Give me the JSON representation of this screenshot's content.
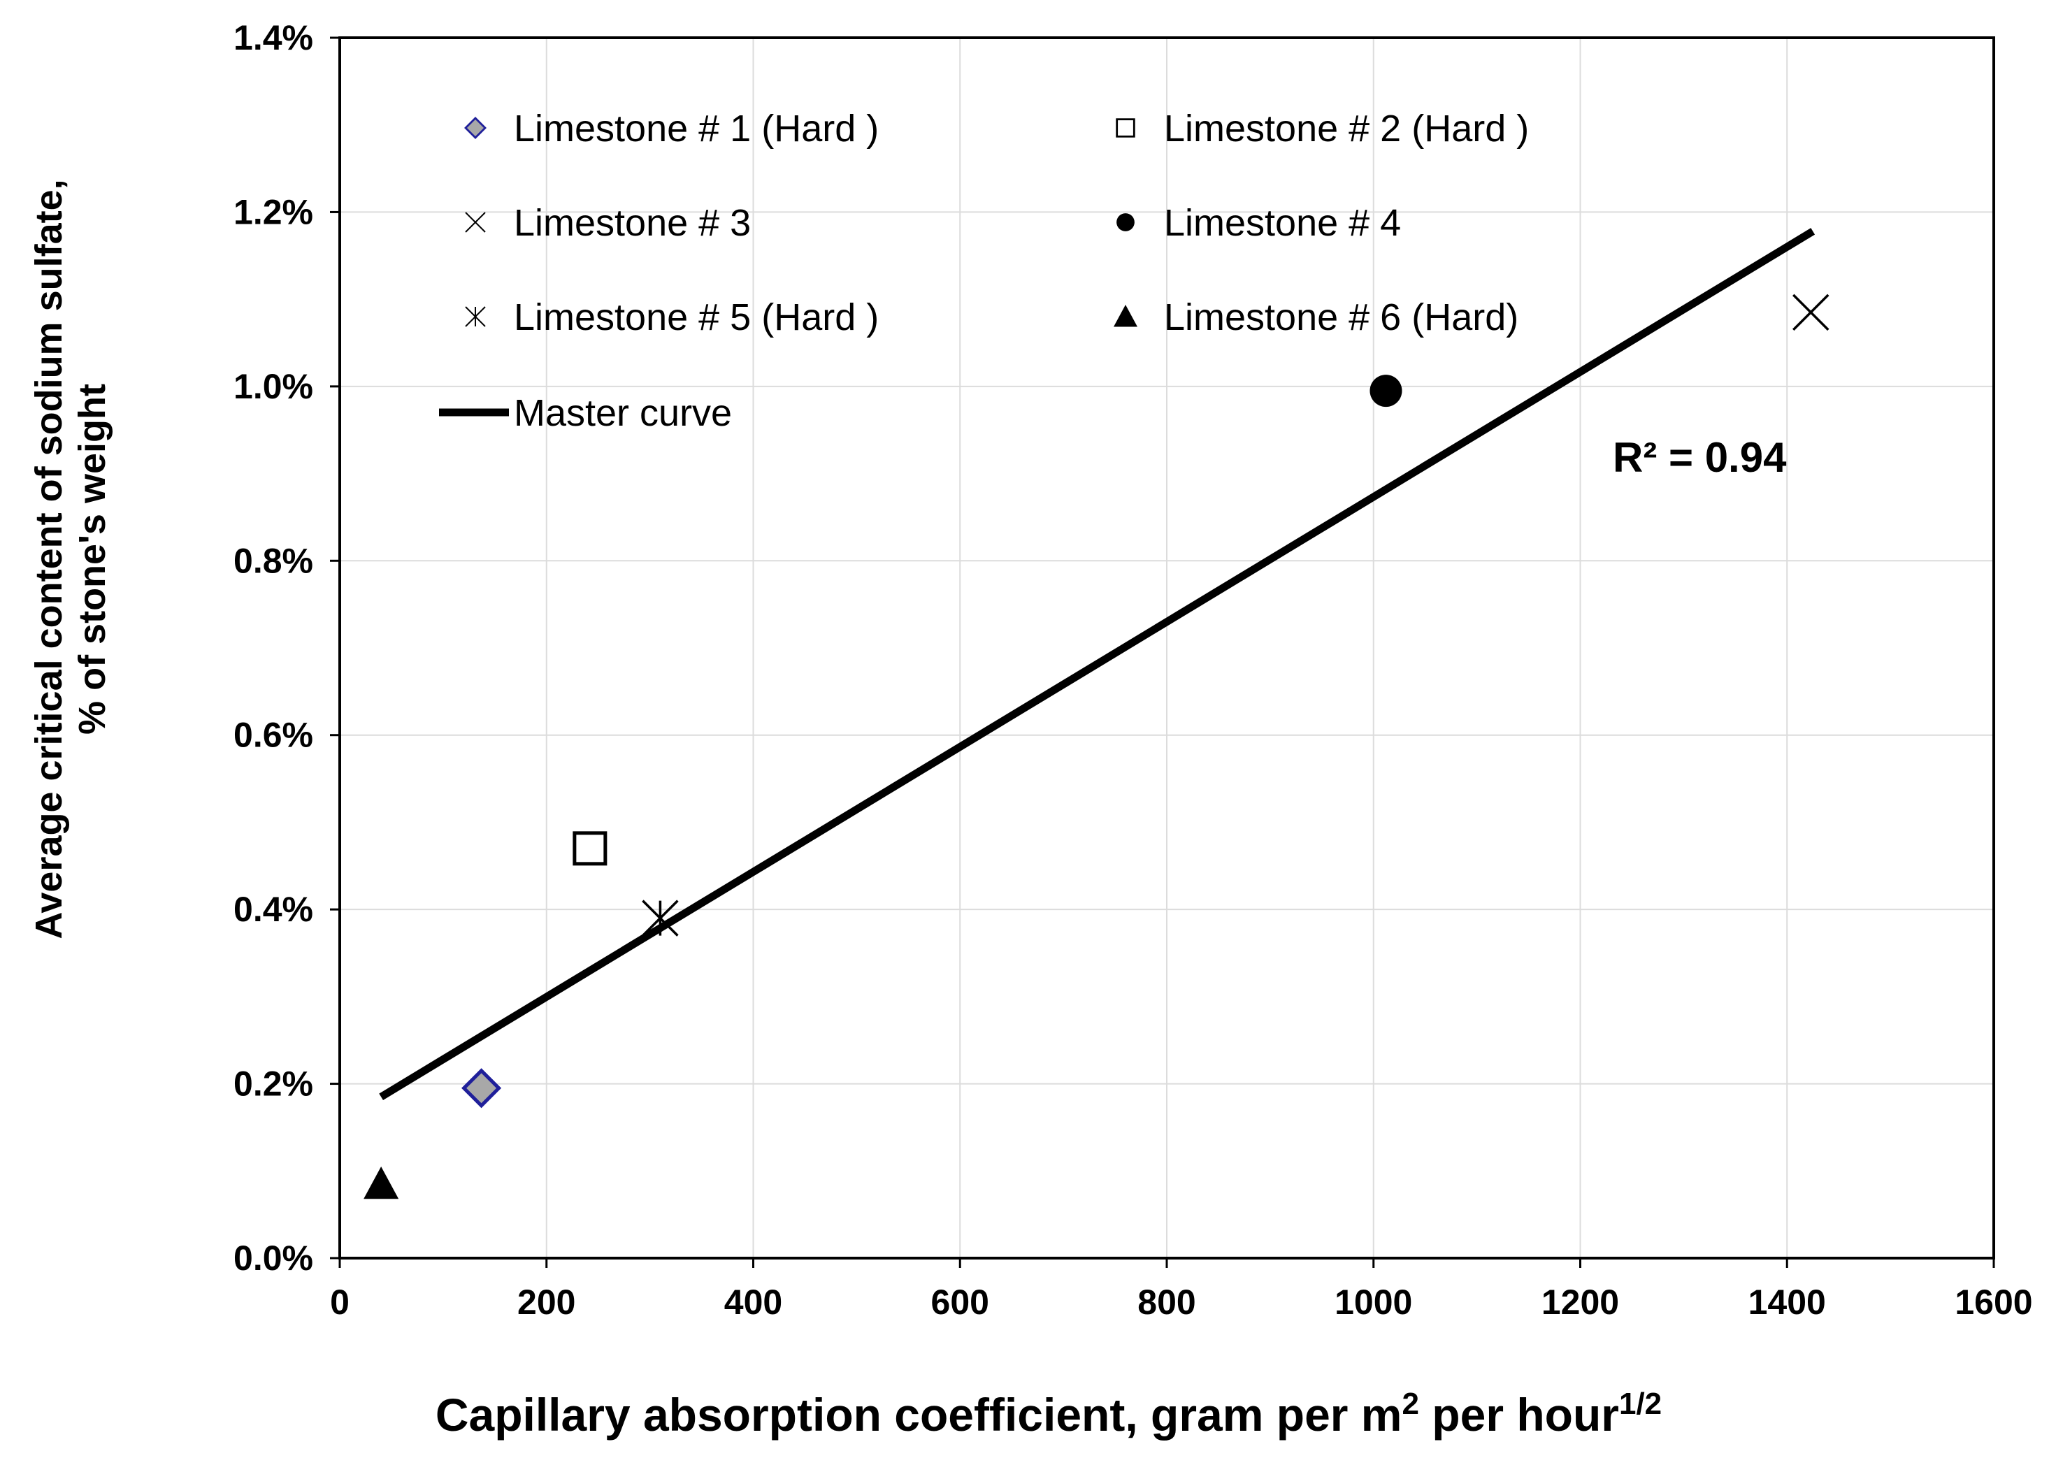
{
  "chart_data": {
    "type": "scatter",
    "title": "",
    "xlabel": "Capillary  absorption coefficient, gram per m",
    "xlabel_sup1": "2",
    "xlabel_mid": " per hour",
    "xlabel_sup2": "1/2",
    "ylabel_line1": "Average critical content of sodium sulfate,",
    "ylabel_line2": "% of stone's weight",
    "xlim": [
      0,
      1600
    ],
    "ylim": [
      0,
      1.4
    ],
    "xticks": [
      0,
      200,
      400,
      600,
      800,
      1000,
      1200,
      1400,
      1600
    ],
    "xtick_labels": [
      "0",
      "200",
      "400",
      "600",
      "800",
      "1000",
      "1200",
      "1400",
      "1600"
    ],
    "yticks": [
      0,
      0.2,
      0.4,
      0.6,
      0.8,
      1.0,
      1.2,
      1.4
    ],
    "ytick_labels": [
      "0.0%",
      "0.2%",
      "0.4%",
      "0.6%",
      "0.8%",
      "1.0%",
      "1.2%",
      "1.4%"
    ],
    "grid": true,
    "series": [
      {
        "name": "Limestone # 1 (Hard )",
        "marker": "diamond",
        "x": 137,
        "y": 0.195
      },
      {
        "name": "Limestone # 2 (Hard )",
        "marker": "square",
        "x": 242,
        "y": 0.47
      },
      {
        "name": "Limestone # 3",
        "marker": "x",
        "x": 1423,
        "y": 1.085
      },
      {
        "name": "Limestone # 4",
        "marker": "circle",
        "x": 1012,
        "y": 0.995
      },
      {
        "name": "Limestone # 5 (Hard )",
        "marker": "star",
        "x": 310,
        "y": 0.39
      },
      {
        "name": "Limestone # 6 (Hard)",
        "marker": "triangle",
        "x": 40,
        "y": 0.085
      }
    ],
    "trendline": {
      "name": "Master curve",
      "x": [
        40,
        1425
      ],
      "y": [
        0.185,
        1.178
      ]
    },
    "annotation": "R² = 0.94",
    "legend_position": "top-left"
  },
  "colors": {
    "diamond_edge": "#1f1f9a",
    "diamond_fill": "#a8a8a8",
    "grid": "#dcdcdc",
    "ink": "#000000"
  }
}
